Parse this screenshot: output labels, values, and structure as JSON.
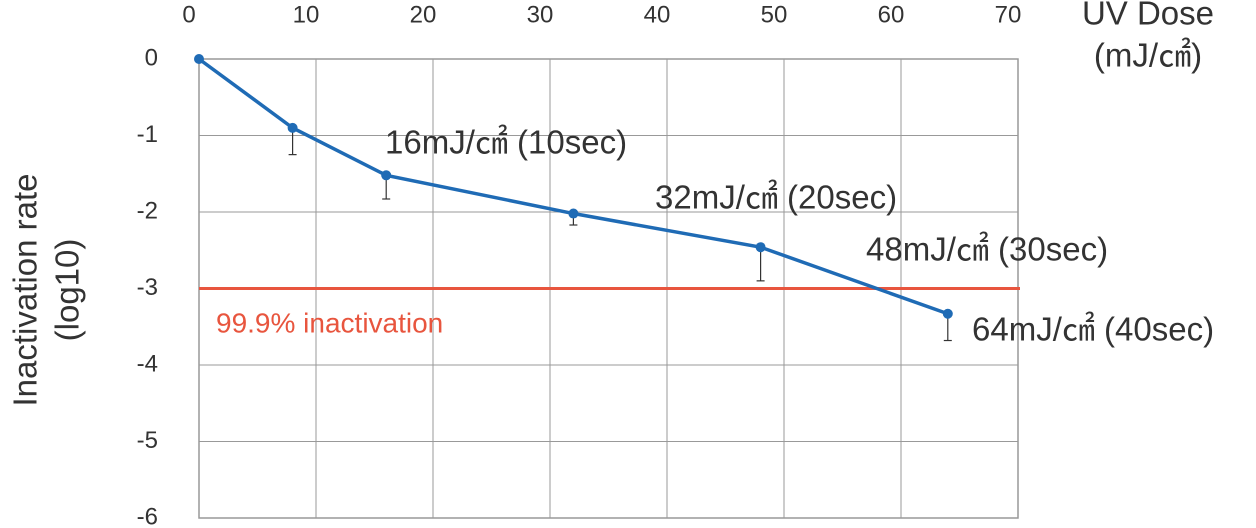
{
  "chart_data": {
    "type": "line",
    "x_label": [
      "UV Dose",
      "(mJ/㎠)"
    ],
    "y_label": [
      "Inactivation rate",
      "(log10)"
    ],
    "x": [
      0,
      8,
      16,
      32,
      48,
      64
    ],
    "series": [
      {
        "color": "#1f6bb5",
        "values": [
          0,
          -0.9,
          -1.52,
          -2.02,
          -2.46,
          -3.33
        ],
        "errors": [
          null,
          0.35,
          0.31,
          0.15,
          0.44,
          0.35
        ]
      }
    ],
    "xlim": [
      0,
      70
    ],
    "xticks": [
      0,
      10,
      20,
      30,
      40,
      50,
      60,
      70
    ],
    "ylim": [
      -6,
      0
    ],
    "yticks": [
      0,
      -1,
      -2,
      -3,
      -4,
      -5,
      -6
    ],
    "grid": true,
    "reference_line": {
      "value": -3,
      "label": "99.9% inactivation",
      "color": "#e8553e"
    },
    "annotations": [
      "16mJ/㎠ (10sec)",
      "32mJ/㎠ (20sec)",
      "48mJ/㎠ (30sec)",
      "64mJ/㎠ (40sec)"
    ]
  }
}
